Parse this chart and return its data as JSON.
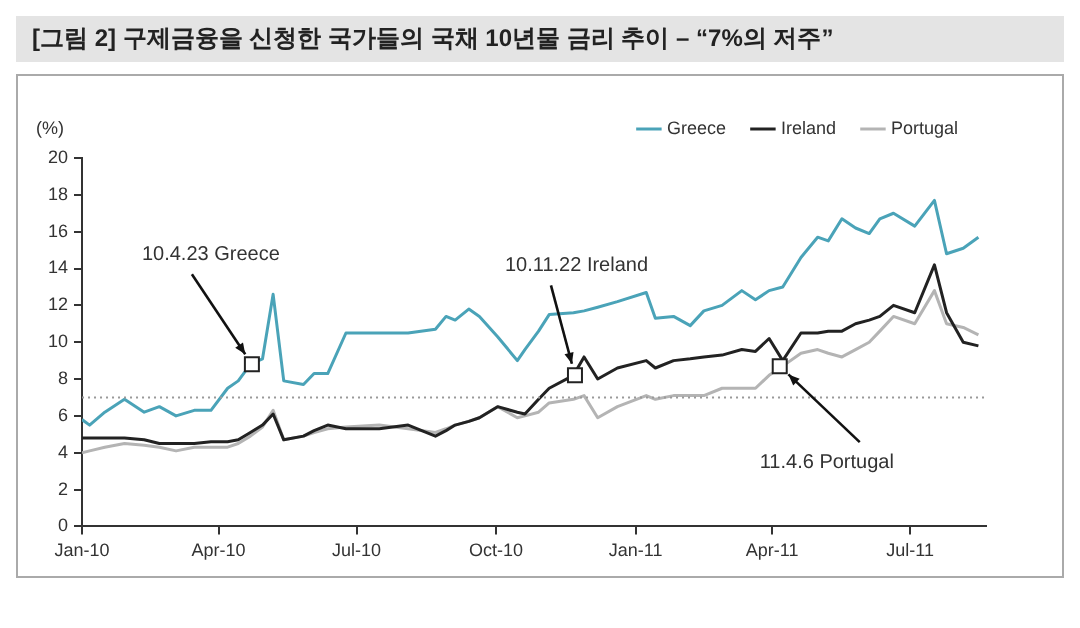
{
  "chart_data": {
    "type": "line",
    "title": "[그림 2] 구제금융을 신청한 국가들의 국채 10년물 금리 추이 – “7%의 저주”",
    "ylabel": "(%)",
    "x": [
      "2010-01-01",
      "2010-01-06",
      "2010-01-16",
      "2010-01-29",
      "2010-02-11",
      "2010-02-21",
      "2010-03-04",
      "2010-03-16",
      "2010-03-27",
      "2010-04-07",
      "2010-04-14",
      "2010-04-22",
      "2010-04-30",
      "2010-05-07",
      "2010-05-14",
      "2010-05-27",
      "2010-06-03",
      "2010-06-12",
      "2010-06-24",
      "2010-07-16",
      "2010-08-04",
      "2010-08-22",
      "2010-08-29",
      "2010-09-04",
      "2010-09-13",
      "2010-09-20",
      "2010-10-02",
      "2010-10-15",
      "2010-10-20",
      "2010-10-29",
      "2010-11-05",
      "2010-11-21",
      "2010-11-28",
      "2010-12-07",
      "2010-12-20",
      "2011-01-08",
      "2011-01-14",
      "2011-01-26",
      "2011-02-06",
      "2011-02-15",
      "2011-02-27",
      "2011-03-12",
      "2011-03-21",
      "2011-03-30",
      "2011-04-08",
      "2011-04-20",
      "2011-05-01",
      "2011-05-08",
      "2011-05-17",
      "2011-05-26",
      "2011-06-04",
      "2011-06-11",
      "2011-06-20",
      "2011-07-04",
      "2011-07-17",
      "2011-07-25",
      "2011-08-05",
      "2011-08-15"
    ],
    "series": [
      {
        "name": "Greece",
        "color": "#4aa3b8",
        "values": [
          5.8,
          5.5,
          6.2,
          6.9,
          6.2,
          6.5,
          6.0,
          6.3,
          6.3,
          7.5,
          7.9,
          8.8,
          9.1,
          12.6,
          7.9,
          7.7,
          8.3,
          8.3,
          10.5,
          10.5,
          10.5,
          10.7,
          11.4,
          11.2,
          11.8,
          11.4,
          10.3,
          9.0,
          9.6,
          10.6,
          11.5,
          11.6,
          11.7,
          11.9,
          12.2,
          12.7,
          11.3,
          11.4,
          10.9,
          11.7,
          12.0,
          12.8,
          12.3,
          12.8,
          13.0,
          14.6,
          15.7,
          15.5,
          16.7,
          16.2,
          15.9,
          16.7,
          17.0,
          16.3,
          17.7,
          14.8,
          15.1,
          15.7
        ]
      },
      {
        "name": "Ireland",
        "color": "#222222",
        "values": [
          4.8,
          4.8,
          4.8,
          4.8,
          4.7,
          4.5,
          4.5,
          4.5,
          4.6,
          4.6,
          4.7,
          5.1,
          5.5,
          6.1,
          4.7,
          4.9,
          5.2,
          5.5,
          5.3,
          5.3,
          5.5,
          4.9,
          5.2,
          5.5,
          5.7,
          5.9,
          6.5,
          6.2,
          6.1,
          6.9,
          7.5,
          8.2,
          9.2,
          8.0,
          8.6,
          9.0,
          8.6,
          9.0,
          9.1,
          9.2,
          9.3,
          9.6,
          9.5,
          10.2,
          9.0,
          10.5,
          10.5,
          10.6,
          10.6,
          11.0,
          11.2,
          11.4,
          12.0,
          11.6,
          14.2,
          11.6,
          10.0,
          9.8
        ]
      },
      {
        "name": "Portugal",
        "color": "#b4b4b4",
        "values": [
          4.0,
          4.1,
          4.3,
          4.5,
          4.4,
          4.3,
          4.1,
          4.3,
          4.3,
          4.3,
          4.5,
          4.9,
          5.4,
          6.3,
          4.7,
          4.9,
          5.1,
          5.3,
          5.4,
          5.5,
          5.3,
          5.1,
          5.3,
          5.5,
          5.7,
          5.9,
          6.5,
          5.9,
          6.0,
          6.2,
          6.7,
          6.9,
          7.1,
          5.9,
          6.5,
          7.1,
          6.9,
          7.1,
          7.1,
          7.1,
          7.5,
          7.5,
          7.5,
          8.2,
          8.7,
          9.4,
          9.6,
          9.4,
          9.2,
          9.6,
          10.0,
          10.6,
          11.4,
          11.0,
          12.8,
          11.0,
          10.8,
          10.4
        ]
      }
    ],
    "xlim": [
      "2010-01-01",
      "2011-08-20"
    ],
    "xticks": [
      {
        "value": "2010-01-01",
        "label": "Jan-10"
      },
      {
        "value": "2010-04-01",
        "label": "Apr-10"
      },
      {
        "value": "2010-07-01",
        "label": "Jul-10"
      },
      {
        "value": "2010-10-01",
        "label": "Oct-10"
      },
      {
        "value": "2011-01-01",
        "label": "Jan-11"
      },
      {
        "value": "2011-04-01",
        "label": "Apr-11"
      },
      {
        "value": "2011-07-01",
        "label": "Jul-11"
      }
    ],
    "ylim": [
      0,
      20
    ],
    "yticks": [
      0,
      2,
      4,
      6,
      8,
      10,
      12,
      14,
      16,
      18,
      20
    ],
    "ref_lines": [
      {
        "axis": "y",
        "value": 7,
        "color": "#999999",
        "line_style": "dotted"
      }
    ],
    "annotations": [
      {
        "text": "10.4.23 Greece",
        "x": "2010-04-23",
        "y": 8.8
      },
      {
        "text": "10.11.22 Ireland",
        "x": "2010-11-22",
        "y": 8.2
      },
      {
        "text": "11.4.6 Portugal",
        "x": "2011-04-06",
        "y": 8.7
      }
    ],
    "legend": "top",
    "marker": "none",
    "line_style": "solid",
    "grid": false
  }
}
